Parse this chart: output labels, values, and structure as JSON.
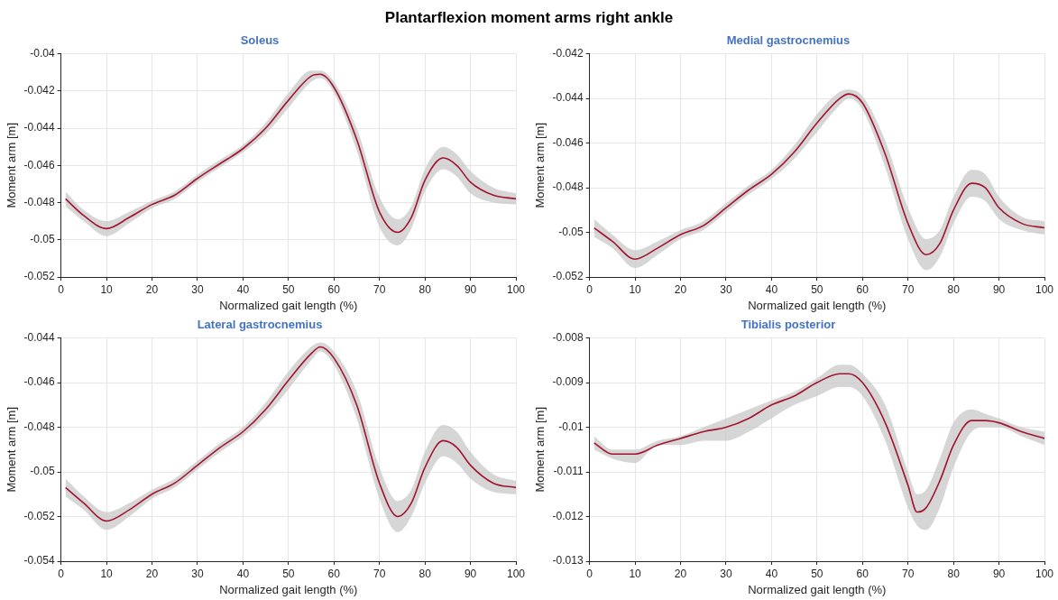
{
  "chart_data": [
    {
      "type": "line",
      "title": "Soleus",
      "annotations": [
        "Plantarflexion moment arms right ankle"
      ],
      "xlabel": "Normalized gait length (%)",
      "ylabel": "Moment arm [m]",
      "xlim": [
        0,
        100
      ],
      "xticks": [
        0,
        10,
        20,
        30,
        40,
        50,
        60,
        70,
        80,
        90,
        100
      ],
      "ylim": [
        -0.052,
        -0.04
      ],
      "yticks": [
        -0.052,
        -0.05,
        -0.048,
        -0.046,
        -0.044,
        -0.042,
        -0.04
      ],
      "grid": true,
      "legend": false,
      "marker": "none",
      "line_style": "solid",
      "series": [
        {
          "color": "#a2142f",
          "x": [
            1,
            5,
            10,
            15,
            20,
            25,
            30,
            35,
            40,
            45,
            50,
            55,
            57,
            60,
            65,
            70,
            74,
            77,
            80,
            84,
            87,
            90,
            95,
            100
          ],
          "values": [
            -0.0478,
            -0.0487,
            -0.0494,
            -0.0488,
            -0.0481,
            -0.0476,
            -0.0467,
            -0.0459,
            -0.0451,
            -0.044,
            -0.0425,
            -0.0412,
            -0.0411,
            -0.0418,
            -0.0446,
            -0.0485,
            -0.0496,
            -0.0488,
            -0.0468,
            -0.0456,
            -0.046,
            -0.0469,
            -0.0476,
            -0.0478
          ],
          "upper": [
            -0.0474,
            -0.0484,
            -0.049,
            -0.0485,
            -0.0479,
            -0.0474,
            -0.0465,
            -0.0457,
            -0.0449,
            -0.0437,
            -0.0421,
            -0.0409,
            -0.0409,
            -0.0415,
            -0.044,
            -0.0477,
            -0.0489,
            -0.0482,
            -0.0462,
            -0.045,
            -0.0454,
            -0.0463,
            -0.0472,
            -0.0475
          ],
          "lower": [
            -0.0482,
            -0.049,
            -0.0498,
            -0.0491,
            -0.0483,
            -0.0478,
            -0.0469,
            -0.0461,
            -0.0453,
            -0.0443,
            -0.0429,
            -0.0415,
            -0.0413,
            -0.0421,
            -0.0452,
            -0.0493,
            -0.0503,
            -0.0494,
            -0.0474,
            -0.0462,
            -0.0466,
            -0.0475,
            -0.048,
            -0.0481
          ]
        }
      ]
    },
    {
      "type": "line",
      "title": "Medial gastrocnemius",
      "xlabel": "Normalized gait length (%)",
      "ylabel": "Moment arm [m]",
      "xlim": [
        0,
        100
      ],
      "xticks": [
        0,
        10,
        20,
        30,
        40,
        50,
        60,
        70,
        80,
        90,
        100
      ],
      "ylim": [
        -0.052,
        -0.042
      ],
      "yticks": [
        -0.052,
        -0.05,
        -0.048,
        -0.046,
        -0.044,
        -0.042
      ],
      "grid": true,
      "legend": false,
      "marker": "none",
      "line_style": "solid",
      "series": [
        {
          "color": "#a2142f",
          "x": [
            1,
            5,
            10,
            15,
            20,
            25,
            30,
            35,
            40,
            45,
            50,
            55,
            57,
            60,
            65,
            70,
            74,
            77,
            80,
            84,
            87,
            90,
            95,
            100
          ],
          "values": [
            -0.0498,
            -0.0504,
            -0.0512,
            -0.0507,
            -0.0501,
            -0.0497,
            -0.0489,
            -0.0481,
            -0.0474,
            -0.0464,
            -0.0451,
            -0.044,
            -0.0438,
            -0.0442,
            -0.0465,
            -0.0496,
            -0.051,
            -0.0505,
            -0.049,
            -0.0478,
            -0.048,
            -0.0489,
            -0.0496,
            -0.0498
          ],
          "upper": [
            -0.0494,
            -0.0501,
            -0.0508,
            -0.0504,
            -0.0499,
            -0.0495,
            -0.0487,
            -0.0479,
            -0.0472,
            -0.0461,
            -0.0447,
            -0.0437,
            -0.0436,
            -0.0439,
            -0.0459,
            -0.0489,
            -0.0503,
            -0.0499,
            -0.0484,
            -0.0472,
            -0.0474,
            -0.0484,
            -0.0493,
            -0.0495
          ],
          "lower": [
            -0.0502,
            -0.0507,
            -0.0516,
            -0.051,
            -0.0503,
            -0.0499,
            -0.0491,
            -0.0483,
            -0.0476,
            -0.0467,
            -0.0455,
            -0.0443,
            -0.044,
            -0.0445,
            -0.0471,
            -0.0503,
            -0.0517,
            -0.0511,
            -0.0496,
            -0.0484,
            -0.0486,
            -0.0494,
            -0.0499,
            -0.0501
          ]
        }
      ]
    },
    {
      "type": "line",
      "title": "Lateral gastrocnemius",
      "xlabel": "Normalized gait length (%)",
      "ylabel": "Moment arm [m]",
      "xlim": [
        0,
        100
      ],
      "xticks": [
        0,
        10,
        20,
        30,
        40,
        50,
        60,
        70,
        80,
        90,
        100
      ],
      "ylim": [
        -0.054,
        -0.044
      ],
      "yticks": [
        -0.054,
        -0.052,
        -0.05,
        -0.048,
        -0.046,
        -0.044
      ],
      "grid": true,
      "legend": false,
      "marker": "none",
      "line_style": "solid",
      "series": [
        {
          "color": "#a2142f",
          "x": [
            1,
            5,
            10,
            15,
            20,
            25,
            30,
            35,
            40,
            45,
            50,
            55,
            57,
            60,
            65,
            70,
            74,
            77,
            80,
            84,
            87,
            90,
            95,
            100
          ],
          "values": [
            -0.0507,
            -0.0514,
            -0.0522,
            -0.0517,
            -0.051,
            -0.0505,
            -0.0497,
            -0.0489,
            -0.0482,
            -0.0472,
            -0.0459,
            -0.0447,
            -0.0444,
            -0.0449,
            -0.047,
            -0.0505,
            -0.052,
            -0.0514,
            -0.0498,
            -0.0486,
            -0.0489,
            -0.0497,
            -0.0505,
            -0.0507
          ],
          "upper": [
            -0.0503,
            -0.0511,
            -0.0518,
            -0.0514,
            -0.0508,
            -0.0503,
            -0.0495,
            -0.0487,
            -0.048,
            -0.0469,
            -0.0455,
            -0.0444,
            -0.0442,
            -0.0446,
            -0.0464,
            -0.0498,
            -0.0513,
            -0.0508,
            -0.0491,
            -0.0479,
            -0.0482,
            -0.0491,
            -0.0501,
            -0.0504
          ],
          "lower": [
            -0.0511,
            -0.0517,
            -0.0526,
            -0.052,
            -0.0512,
            -0.0507,
            -0.0499,
            -0.0491,
            -0.0484,
            -0.0475,
            -0.0463,
            -0.045,
            -0.0446,
            -0.0452,
            -0.0476,
            -0.0512,
            -0.0527,
            -0.052,
            -0.0505,
            -0.0493,
            -0.0496,
            -0.0503,
            -0.0509,
            -0.051
          ]
        }
      ]
    },
    {
      "type": "line",
      "title": "Tibialis posterior",
      "xlabel": "Normalized gait length (%)",
      "ylabel": "Moment arm [m]",
      "xlim": [
        0,
        100
      ],
      "xticks": [
        0,
        10,
        20,
        30,
        40,
        50,
        60,
        70,
        80,
        90,
        100
      ],
      "ylim": [
        -0.013,
        -0.008
      ],
      "yticks": [
        -0.013,
        -0.012,
        -0.011,
        -0.01,
        -0.009,
        -0.008
      ],
      "grid": true,
      "legend": false,
      "marker": "none",
      "line_style": "solid",
      "series": [
        {
          "color": "#a2142f",
          "x": [
            1,
            5,
            10,
            15,
            20,
            25,
            30,
            35,
            40,
            45,
            50,
            55,
            57,
            60,
            65,
            70,
            72,
            74,
            77,
            80,
            84,
            87,
            90,
            95,
            100
          ],
          "values": [
            -0.01035,
            -0.0106,
            -0.0106,
            -0.0104,
            -0.01025,
            -0.0101,
            -0.01,
            -0.0098,
            -0.0095,
            -0.0093,
            -0.009,
            -0.0088,
            -0.0088,
            -0.009,
            -0.0099,
            -0.0113,
            -0.0119,
            -0.0118,
            -0.0112,
            -0.0104,
            -0.00985,
            -0.00985,
            -0.0099,
            -0.0101,
            -0.01025
          ],
          "upper": [
            -0.0102,
            -0.0105,
            -0.0105,
            -0.0103,
            -0.0102,
            -0.01,
            -0.0098,
            -0.0096,
            -0.0094,
            -0.0092,
            -0.0089,
            -0.0086,
            -0.0086,
            -0.0088,
            -0.0095,
            -0.011,
            -0.0115,
            -0.0114,
            -0.0107,
            -0.0099,
            -0.0096,
            -0.0097,
            -0.0098,
            -0.01,
            -0.0101
          ],
          "lower": [
            -0.0105,
            -0.0107,
            -0.0108,
            -0.0104,
            -0.0104,
            -0.0103,
            -0.0103,
            -0.0101,
            -0.0098,
            -0.0095,
            -0.0093,
            -0.0091,
            -0.0091,
            -0.0093,
            -0.0103,
            -0.0118,
            -0.0122,
            -0.0123,
            -0.0118,
            -0.0109,
            -0.0101,
            -0.01,
            -0.01,
            -0.0102,
            -0.0104
          ]
        }
      ]
    }
  ]
}
